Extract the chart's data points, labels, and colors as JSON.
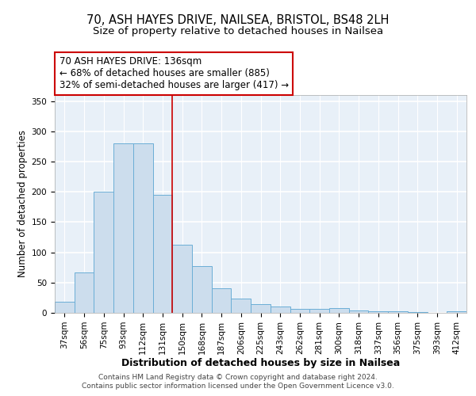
{
  "title1": "70, ASH HAYES DRIVE, NAILSEA, BRISTOL, BS48 2LH",
  "title2": "Size of property relative to detached houses in Nailsea",
  "xlabel": "Distribution of detached houses by size in Nailsea",
  "ylabel": "Number of detached properties",
  "categories": [
    "37sqm",
    "56sqm",
    "75sqm",
    "93sqm",
    "112sqm",
    "131sqm",
    "150sqm",
    "168sqm",
    "187sqm",
    "206sqm",
    "225sqm",
    "243sqm",
    "262sqm",
    "281sqm",
    "300sqm",
    "318sqm",
    "337sqm",
    "356sqm",
    "375sqm",
    "393sqm",
    "412sqm"
  ],
  "values": [
    18,
    67,
    200,
    280,
    280,
    195,
    113,
    77,
    40,
    24,
    15,
    10,
    7,
    7,
    8,
    4,
    3,
    2,
    1,
    0,
    3
  ],
  "bar_color": "#ccdded",
  "bar_edge_color": "#6baed6",
  "background_color": "#e8f0f8",
  "grid_color": "#ffffff",
  "vline_x": 5.5,
  "vline_color": "#cc0000",
  "annotation_text": "70 ASH HAYES DRIVE: 136sqm\n← 68% of detached houses are smaller (885)\n32% of semi-detached houses are larger (417) →",
  "annotation_box_color": "#ffffff",
  "annotation_box_edge": "#cc0000",
  "footer1": "Contains HM Land Registry data © Crown copyright and database right 2024.",
  "footer2": "Contains public sector information licensed under the Open Government Licence v3.0.",
  "ylim": [
    0,
    360
  ],
  "yticks": [
    0,
    50,
    100,
    150,
    200,
    250,
    300,
    350
  ],
  "title1_fontsize": 10.5,
  "title2_fontsize": 9.5,
  "xlabel_fontsize": 9,
  "ylabel_fontsize": 8.5,
  "tick_fontsize": 7.5,
  "annotation_fontsize": 8.5,
  "footer_fontsize": 6.5
}
